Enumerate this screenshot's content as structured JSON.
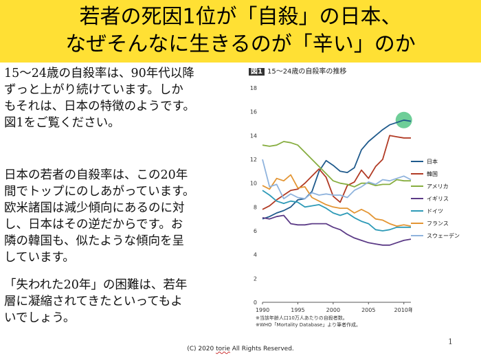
{
  "title": {
    "line1": "若者の死因1位が「自殺」の日本、",
    "line2": "なぜそんなに生きるのが「辛い」のか"
  },
  "body": {
    "para1": "15～24歳の自殺率は、90年代以降\nずっと上がり続けています。しか\nもそれは、日本の特徴のようです。\n図1をご覧ください。",
    "para2": "日本の若者の自殺率は、この20年\n間でトップにのしあがっています。\n欧米諸国は減少傾向にあるのに対\nし、日本はその逆だからです。お\n隣の韓国も、似たような傾向を呈\nしています。",
    "para3": "「失われた20年」の困難は、若年\n層に凝縮されてきたといってもよ\nいでしょう。"
  },
  "figure": {
    "number": "図1",
    "caption": "15～24歳の自殺率の推移",
    "notes": "※当該年齢人口10万人あたりの自殺者数。\n※WHO「Mortality Database」より筆者作成。"
  },
  "footer": {
    "copyright_prefix": "(C) 2020 ",
    "copyright_name": "torie",
    "copyright_suffix": " All Rights Reserved.",
    "page_number": "1"
  },
  "chart_data": {
    "type": "line",
    "title": "15～24歳の自殺率の推移",
    "xlabel": "",
    "ylabel": "",
    "xlim": [
      1990,
      2011
    ],
    "ylim": [
      0,
      18
    ],
    "x_ticks": [
      1990,
      1995,
      2000,
      2005,
      2010
    ],
    "x_tick_labels": [
      "1990",
      "1995",
      "2000",
      "2005",
      "2010年"
    ],
    "y_ticks": [
      0,
      2,
      4,
      6,
      8,
      10,
      12,
      14,
      16,
      18
    ],
    "grid": false,
    "legend_position": "right",
    "highlight": {
      "series": "日本",
      "x": 2010,
      "y": 15.3,
      "color": "#5ec98d"
    },
    "x": [
      1990,
      1991,
      1992,
      1993,
      1994,
      1995,
      1996,
      1997,
      1998,
      1999,
      2000,
      2001,
      2002,
      2003,
      2004,
      2005,
      2006,
      2007,
      2008,
      2009,
      2010,
      2011
    ],
    "series": [
      {
        "name": "日本",
        "color": "#1f5a8c",
        "values": [
          7.0,
          7.2,
          7.5,
          7.7,
          8.0,
          8.6,
          8.7,
          9.3,
          11.0,
          11.9,
          11.5,
          11.0,
          10.9,
          11.3,
          12.8,
          13.5,
          14.0,
          14.5,
          14.9,
          15.1,
          15.3,
          15.2
        ]
      },
      {
        "name": "韓国",
        "color": "#b13a24",
        "values": [
          7.8,
          8.1,
          8.6,
          9.0,
          9.4,
          9.5,
          10.0,
          10.6,
          11.2,
          10.5,
          8.9,
          8.4,
          9.8,
          10.1,
          11.1,
          10.4,
          11.4,
          12.0,
          14.0,
          13.9,
          13.8,
          13.8
        ]
      },
      {
        "name": "アメリカ",
        "color": "#86ad3f",
        "values": [
          13.2,
          13.1,
          13.2,
          13.5,
          13.4,
          13.2,
          12.6,
          12.0,
          11.4,
          10.8,
          10.2,
          10.0,
          9.9,
          9.7,
          10.0,
          10.0,
          9.8,
          9.9,
          9.9,
          10.3,
          10.2,
          10.2
        ]
      },
      {
        "name": "イギリス",
        "color": "#5b3a86",
        "values": [
          7.1,
          7.0,
          7.2,
          7.3,
          6.6,
          6.5,
          6.5,
          6.6,
          6.6,
          6.6,
          6.3,
          6.1,
          5.7,
          5.4,
          5.2,
          5.0,
          4.9,
          4.8,
          4.8,
          5.0,
          5.2,
          5.3
        ]
      },
      {
        "name": "ドイツ",
        "color": "#2d9ab7",
        "values": [
          9.4,
          9.0,
          8.5,
          8.3,
          8.5,
          8.4,
          8.0,
          8.1,
          8.2,
          7.9,
          7.5,
          7.3,
          7.5,
          7.1,
          6.8,
          6.6,
          6.1,
          6.0,
          6.1,
          6.3,
          6.3,
          6.3
        ]
      },
      {
        "name": "フランス",
        "color": "#e39533",
        "values": [
          9.8,
          9.5,
          10.4,
          10.2,
          10.7,
          9.6,
          9.7,
          8.8,
          8.5,
          8.2,
          8.0,
          7.9,
          7.9,
          7.5,
          7.8,
          7.5,
          7.0,
          6.9,
          6.6,
          6.4,
          6.5,
          6.4
        ]
      },
      {
        "name": "スウェーデン",
        "color": "#8fb3dd",
        "values": [
          12.0,
          9.7,
          9.9,
          8.7,
          9.1,
          8.8,
          8.7,
          9.2,
          9.0,
          9.1,
          9.0,
          9.0,
          8.8,
          9.4,
          9.7,
          10.1,
          9.9,
          10.3,
          10.2,
          10.4,
          10.6,
          10.3
        ]
      }
    ]
  }
}
